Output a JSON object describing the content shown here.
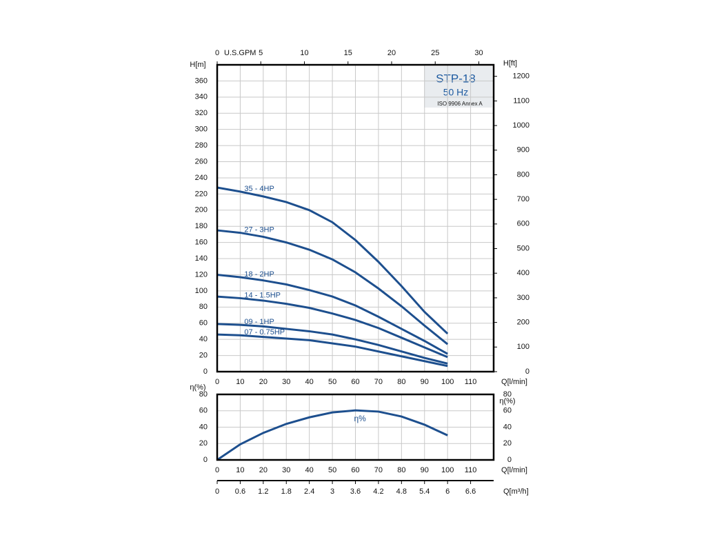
{
  "chart_data": [
    {
      "type": "line",
      "title": "STP-18",
      "subtitle": "50 Hz",
      "note": "ISO 9906 Annex A",
      "ylabel": "H[m]",
      "y2label": "H[ft]",
      "xlabel": "Q[l/min]",
      "x2label": "U.S.GPM",
      "x": [
        0,
        10,
        20,
        30,
        40,
        50,
        60,
        70,
        80,
        90,
        100
      ],
      "series": [
        {
          "name": "35 - 4HP",
          "color": "#1d4f8e",
          "values": [
            228,
            223,
            217,
            210,
            200,
            185,
            163,
            136,
            106,
            74,
            47
          ]
        },
        {
          "name": "27 - 3HP",
          "color": "#1d4f8e",
          "values": [
            175,
            172,
            167,
            160,
            151,
            139,
            123,
            103,
            81,
            57,
            34
          ]
        },
        {
          "name": "18 - 2HP",
          "color": "#1d4f8e",
          "values": [
            120,
            117,
            113,
            108,
            101,
            93,
            82,
            68,
            53,
            38,
            22
          ]
        },
        {
          "name": "14 - 1.5HP",
          "color": "#1d4f8e",
          "values": [
            93,
            91,
            88,
            84,
            79,
            72,
            64,
            54,
            42,
            30,
            18
          ]
        },
        {
          "name": "09 - 1HP",
          "color": "#1d4f8e",
          "values": [
            59,
            58,
            56,
            53,
            50,
            46,
            40,
            33,
            25,
            17,
            10
          ]
        },
        {
          "name": "07 - 0.75HP",
          "color": "#1d4f8e",
          "values": [
            46,
            45,
            43,
            41,
            39,
            35,
            31,
            25,
            19,
            13,
            7
          ]
        }
      ],
      "xlim": [
        0,
        120
      ],
      "xticks": [
        0,
        10,
        20,
        30,
        40,
        50,
        60,
        70,
        80,
        90,
        100,
        110
      ],
      "ylim": [
        0,
        380
      ],
      "yticks": [
        0,
        20,
        40,
        60,
        80,
        100,
        120,
        140,
        160,
        180,
        200,
        220,
        240,
        260,
        280,
        300,
        320,
        340,
        360
      ],
      "y2lim": [
        0,
        1246.7
      ],
      "y2ticks": [
        0,
        100,
        200,
        300,
        400,
        500,
        600,
        700,
        800,
        900,
        1000,
        1100,
        1200
      ],
      "x2lim": [
        0,
        31.7
      ],
      "x2ticks": [
        0,
        5,
        10,
        15,
        20,
        25,
        30
      ],
      "grid": true
    },
    {
      "type": "line",
      "ylabel": "η(%)",
      "xlabel": "Q[l/min]",
      "annotation": "η%",
      "x": [
        0,
        10,
        20,
        30,
        40,
        50,
        60,
        70,
        80,
        90,
        100
      ],
      "series": [
        {
          "name": "η%",
          "color": "#1d4f8e",
          "values": [
            0,
            19,
            33,
            44,
            52,
            58,
            60.5,
            59,
            53,
            43,
            30
          ]
        }
      ],
      "xlim": [
        0,
        120
      ],
      "xticks": [
        0,
        10,
        20,
        30,
        40,
        50,
        60,
        70,
        80,
        90,
        100,
        110
      ],
      "ylim": [
        0,
        80
      ],
      "yticks": [
        0,
        20,
        40,
        60,
        80
      ],
      "x2label": "Q[m³/h]",
      "x2lim": [
        0,
        7.2
      ],
      "x2ticks": [
        0,
        0.6,
        1.2,
        1.8,
        2.4,
        3,
        3.6,
        4.2,
        4.8,
        5.4,
        6,
        6.6
      ],
      "grid": true
    }
  ]
}
